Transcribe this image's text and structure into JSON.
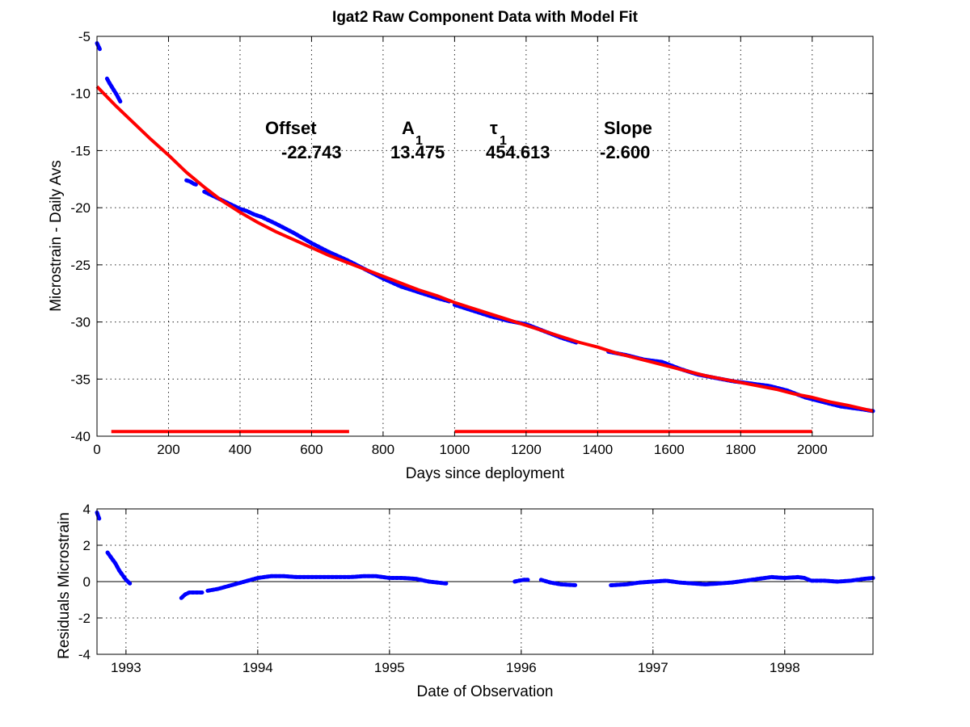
{
  "chart_data": [
    {
      "id": "top",
      "type": "line",
      "title": "Igat2  Raw Component Data with Model Fit",
      "xlabel": "Days since deployment",
      "ylabel": "Microstrain - Daily Avs",
      "xlim": [
        0,
        2170
      ],
      "ylim": [
        -40,
        -5
      ],
      "xticks": [
        0,
        200,
        400,
        600,
        800,
        1000,
        1200,
        1400,
        1600,
        1800,
        2000
      ],
      "yticks": [
        -5,
        -10,
        -15,
        -20,
        -25,
        -30,
        -35,
        -40
      ],
      "grid": true,
      "annotations": {
        "headers": [
          "Offset",
          "A",
          "τ",
          "Slope"
        ],
        "subscripts": [
          "",
          "1",
          "1",
          ""
        ],
        "values": [
          "-22.743",
          "13.475",
          "454.613",
          "-2.600"
        ]
      },
      "series": [
        {
          "color": "#0000ff",
          "style": "dots",
          "segments": [
            {
              "x": [
                0,
                3,
                6,
                9
              ],
              "y": [
                -5.6,
                -5.8,
                -6.0,
                -6.2
              ]
            },
            {
              "x": [
                28,
                35,
                45,
                55,
                65
              ],
              "y": [
                -8.7,
                -9.1,
                -9.6,
                -10.1,
                -10.7
              ]
            },
            {
              "x": [
                250,
                260,
                270,
                280
              ],
              "y": [
                -17.6,
                -17.7,
                -17.9,
                -18.0
              ]
            },
            {
              "x": [
                300,
                320,
                340,
                360,
                380,
                400,
                420,
                440,
                460,
                480,
                500,
                550,
                600,
                650,
                700,
                750,
                800,
                850,
                900,
                950,
                985
              ],
              "y": [
                -18.6,
                -18.9,
                -19.2,
                -19.5,
                -19.8,
                -20.1,
                -20.3,
                -20.6,
                -20.8,
                -21.1,
                -21.4,
                -22.2,
                -23.1,
                -23.9,
                -24.6,
                -25.4,
                -26.2,
                -26.9,
                -27.4,
                -27.9,
                -28.2
              ]
            },
            {
              "x": [
                1000,
                1050,
                1100,
                1150,
                1200,
                1250,
                1300,
                1340
              ],
              "y": [
                -28.5,
                -29.0,
                -29.5,
                -29.9,
                -30.2,
                -30.8,
                -31.4,
                -31.8
              ]
            },
            {
              "x": [
                1430,
                1480,
                1530,
                1580,
                1630,
                1680,
                1730,
                1780,
                1830,
                1880,
                1930,
                1980,
                2030,
                2080,
                2130,
                2170
              ],
              "y": [
                -32.6,
                -32.9,
                -33.3,
                -33.5,
                -34.1,
                -34.6,
                -34.9,
                -35.2,
                -35.4,
                -35.6,
                -36.0,
                -36.6,
                -37.0,
                -37.4,
                -37.6,
                -37.8
              ]
            }
          ]
        },
        {
          "color": "#ff0000",
          "style": "line",
          "segments": [
            {
              "x": [
                0,
                50,
                100,
                150,
                200,
                250,
                300,
                350,
                400,
                450,
                500,
                550,
                600,
                650,
                700,
                750,
                800,
                850,
                900,
                950,
                1000,
                1050,
                1100,
                1150,
                1200,
                1250,
                1300,
                1350,
                1400,
                1450,
                1500,
                1550,
                1600,
                1650,
                1700,
                1750,
                1800,
                1850,
                1900,
                1950,
                2000,
                2050,
                2100,
                2170
              ],
              "y": [
                -9.4,
                -11.0,
                -12.5,
                -14.0,
                -15.4,
                -16.9,
                -18.2,
                -19.4,
                -20.4,
                -21.3,
                -22.1,
                -22.8,
                -23.5,
                -24.2,
                -24.8,
                -25.4,
                -26.0,
                -26.6,
                -27.2,
                -27.7,
                -28.3,
                -28.8,
                -29.3,
                -29.8,
                -30.3,
                -30.8,
                -31.3,
                -31.8,
                -32.2,
                -32.7,
                -33.1,
                -33.5,
                -33.9,
                -34.3,
                -34.7,
                -35.0,
                -35.3,
                -35.6,
                -35.9,
                -36.3,
                -36.6,
                -37.0,
                -37.3,
                -37.8
              ]
            }
          ]
        },
        {
          "color": "#ff0000",
          "style": "thick-segment",
          "segments": [
            {
              "x": [
                40,
                705
              ],
              "y": [
                -39.6,
                -39.6
              ]
            },
            {
              "x": [
                1000,
                2000
              ],
              "y": [
                -39.6,
                -39.6
              ]
            }
          ]
        }
      ]
    },
    {
      "id": "bottom",
      "type": "line",
      "title": "",
      "xlabel": "Date of Observation",
      "ylabel": "Residuals Microstrain",
      "xlim": [
        1992.78,
        1998.67
      ],
      "ylim": [
        -4,
        4
      ],
      "xticks": [
        1993,
        1994,
        1995,
        1996,
        1997,
        1998
      ],
      "yticks": [
        4,
        2,
        0,
        -2,
        -4
      ],
      "grid": true,
      "zero_line": true,
      "series": [
        {
          "color": "#0000ff",
          "style": "dots",
          "segments": [
            {
              "x": [
                1992.78,
                1992.79,
                1992.8
              ],
              "y": [
                3.8,
                3.6,
                3.4
              ]
            },
            {
              "x": [
                1992.86,
                1992.89,
                1992.92,
                1992.95,
                1992.98,
                1993.0,
                1993.03
              ],
              "y": [
                1.6,
                1.3,
                1.0,
                0.6,
                0.3,
                0.1,
                -0.1
              ]
            },
            {
              "x": [
                1993.42,
                1993.45,
                1993.48,
                1993.52,
                1993.58
              ],
              "y": [
                -0.9,
                -0.7,
                -0.6,
                -0.6,
                -0.6
              ]
            },
            {
              "x": [
                1993.62,
                1993.7,
                1993.8,
                1993.9,
                1994.0,
                1994.1,
                1994.2,
                1994.3,
                1994.4,
                1994.5,
                1994.6,
                1994.7,
                1994.8,
                1994.9,
                1995.0,
                1995.1,
                1995.2,
                1995.3,
                1995.43
              ],
              "y": [
                -0.5,
                -0.4,
                -0.2,
                0.0,
                0.2,
                0.3,
                0.3,
                0.25,
                0.25,
                0.25,
                0.25,
                0.25,
                0.3,
                0.3,
                0.2,
                0.2,
                0.15,
                0.0,
                -0.1
              ]
            },
            {
              "x": [
                1995.95,
                1995.98,
                1996.02,
                1996.05
              ],
              "y": [
                0.0,
                0.05,
                0.1,
                0.1
              ]
            },
            {
              "x": [
                1996.15,
                1996.22,
                1996.3,
                1996.42
              ],
              "y": [
                0.1,
                -0.05,
                -0.15,
                -0.2
              ]
            },
            {
              "x": [
                1996.68,
                1996.8,
                1996.9,
                1997.0,
                1997.1,
                1997.2,
                1997.3,
                1997.4,
                1997.5,
                1997.6,
                1997.7,
                1997.8,
                1997.9,
                1998.0,
                1998.1,
                1998.15,
                1998.2,
                1998.3,
                1998.4,
                1998.5,
                1998.6,
                1998.67
              ],
              "y": [
                -0.2,
                -0.15,
                -0.05,
                0.0,
                0.05,
                -0.05,
                -0.1,
                -0.15,
                -0.1,
                -0.05,
                0.05,
                0.15,
                0.25,
                0.2,
                0.25,
                0.2,
                0.05,
                0.05,
                0.0,
                0.05,
                0.15,
                0.2
              ]
            }
          ]
        }
      ]
    }
  ]
}
